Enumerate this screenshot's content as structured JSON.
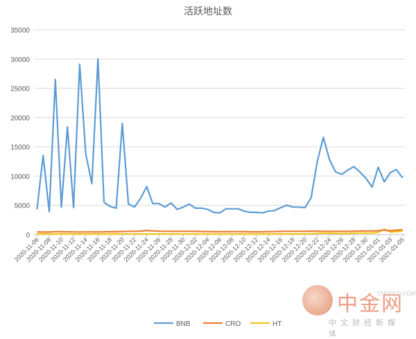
{
  "chart_data": {
    "type": "line",
    "title": "活跃地址数",
    "xlabel": "",
    "ylabel": "",
    "ylim": [
      0,
      35000
    ],
    "yticks": [
      0,
      5000,
      10000,
      15000,
      20000,
      25000,
      30000,
      35000
    ],
    "ytick_labels": [
      "0",
      "5000",
      "10000",
      "15000",
      "20000",
      "25000",
      "30000",
      "35000"
    ],
    "grid": true,
    "legend": "bottom",
    "x": [
      "2020-11-06",
      "2020-11-07",
      "2020-11-08",
      "2020-11-09",
      "2020-11-10",
      "2020-11-11",
      "2020-11-12",
      "2020-11-13",
      "2020-11-14",
      "2020-11-15",
      "2020-11-16",
      "2020-11-17",
      "2020-11-18",
      "2020-11-19",
      "2020-11-20",
      "2020-11-21",
      "2020-11-22",
      "2020-11-23",
      "2020-11-24",
      "2020-11-25",
      "2020-11-26",
      "2020-11-27",
      "2020-11-28",
      "2020-11-29",
      "2020-11-30",
      "2020-12-01",
      "2020-12-02",
      "2020-12-03",
      "2020-12-04",
      "2020-12-05",
      "2020-12-06",
      "2020-12-07",
      "2020-12-08",
      "2020-12-09",
      "2020-12-10",
      "2020-12-11",
      "2020-12-12",
      "2020-12-13",
      "2020-12-14",
      "2020-12-15",
      "2020-12-16",
      "2020-12-17",
      "2020-12-18",
      "2020-12-19",
      "2020-12-20",
      "2020-12-21",
      "2020-12-22",
      "2020-12-23",
      "2020-12-24",
      "2020-12-25",
      "2020-12-26",
      "2020-12-27",
      "2020-12-28",
      "2020-12-29",
      "2020-12-30",
      "2020-12-31",
      "2021-01-01",
      "2021-01-02",
      "2021-01-03",
      "2021-01-04",
      "2021-01-05"
    ],
    "xtick_labels": [
      "2020-11-06",
      "2020-11-08",
      "2020-11-10",
      "2020-11-12",
      "2020-11-14",
      "2020-11-16",
      "2020-11-18",
      "2020-11-20",
      "2020-11-22",
      "2020-11-24",
      "2020-11-26",
      "2020-11-28",
      "2020-11-30",
      "2020-12-02",
      "2020-12-04",
      "2020-12-06",
      "2020-12-08",
      "2020-12-10",
      "2020-12-12",
      "2020-12-14",
      "2020-12-16",
      "2020-12-18",
      "2020-12-20",
      "2020-12-22",
      "2020-12-24",
      "2020-12-26",
      "2020-12-28",
      "2020-12-30",
      "2021-01-01",
      "2021-01-03",
      "2021-01-05"
    ],
    "series": [
      {
        "name": "BNB",
        "color": "#5b9bd5",
        "values": [
          4300,
          13500,
          3900,
          26500,
          4700,
          18400,
          4600,
          29100,
          13800,
          8700,
          30000,
          5500,
          4800,
          4500,
          19000,
          5200,
          4700,
          6200,
          8200,
          5300,
          5300,
          4700,
          5400,
          4300,
          4700,
          5200,
          4500,
          4500,
          4300,
          3800,
          3700,
          4400,
          4400,
          4400,
          4000,
          3800,
          3800,
          3700,
          4000,
          4100,
          4600,
          5000,
          4700,
          4700,
          4600,
          6300,
          12500,
          16600,
          12800,
          10700,
          10300,
          11000,
          11600,
          10700,
          9600,
          8100,
          11500,
          9000,
          10600,
          11100,
          9700
        ]
      },
      {
        "name": "CRO",
        "color": "#ed7d31",
        "values": [
          450,
          430,
          420,
          500,
          470,
          460,
          450,
          440,
          450,
          450,
          440,
          460,
          480,
          470,
          520,
          560,
          560,
          580,
          700,
          620,
          580,
          560,
          550,
          540,
          560,
          550,
          540,
          520,
          500,
          480,
          470,
          480,
          500,
          500,
          480,
          460,
          470,
          460,
          480,
          500,
          540,
          560,
          550,
          560,
          560,
          580,
          580,
          570,
          560,
          540,
          540,
          560,
          580,
          600,
          620,
          620,
          650,
          780,
          650,
          760,
          820
        ]
      },
      {
        "name": "HT",
        "color": "#f5c518",
        "values": [
          120,
          110,
          100,
          110,
          100,
          100,
          90,
          100,
          100,
          90,
          90,
          100,
          100,
          90,
          100,
          100,
          100,
          110,
          100,
          100,
          90,
          90,
          100,
          100,
          100,
          90,
          90,
          90,
          90,
          80,
          80,
          90,
          90,
          90,
          90,
          80,
          90,
          90,
          100,
          100,
          110,
          110,
          110,
          110,
          120,
          130,
          200,
          240,
          220,
          180,
          170,
          200,
          220,
          240,
          260,
          260,
          380,
          900,
          420,
          500,
          560
        ]
      }
    ]
  },
  "watermark": {
    "title": "中金网",
    "url": "CNGOLD.COM.CN",
    "slogan": "中文财经新媒体"
  }
}
